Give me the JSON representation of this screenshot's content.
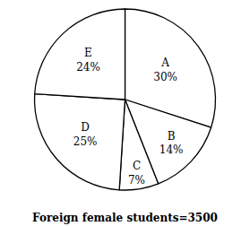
{
  "chart_data": {
    "type": "pie",
    "title": "Foreign female students=3500",
    "categories": [
      "A",
      "B",
      "C",
      "D",
      "E"
    ],
    "values": [
      30,
      14,
      7,
      25,
      24
    ],
    "value_labels": [
      "30%",
      "14%",
      "7%",
      "25%",
      "24%"
    ],
    "colors": [
      "#ffffff",
      "#ffffff",
      "#ffffff",
      "#ffffff",
      "#ffffff"
    ],
    "data_labels": true
  }
}
